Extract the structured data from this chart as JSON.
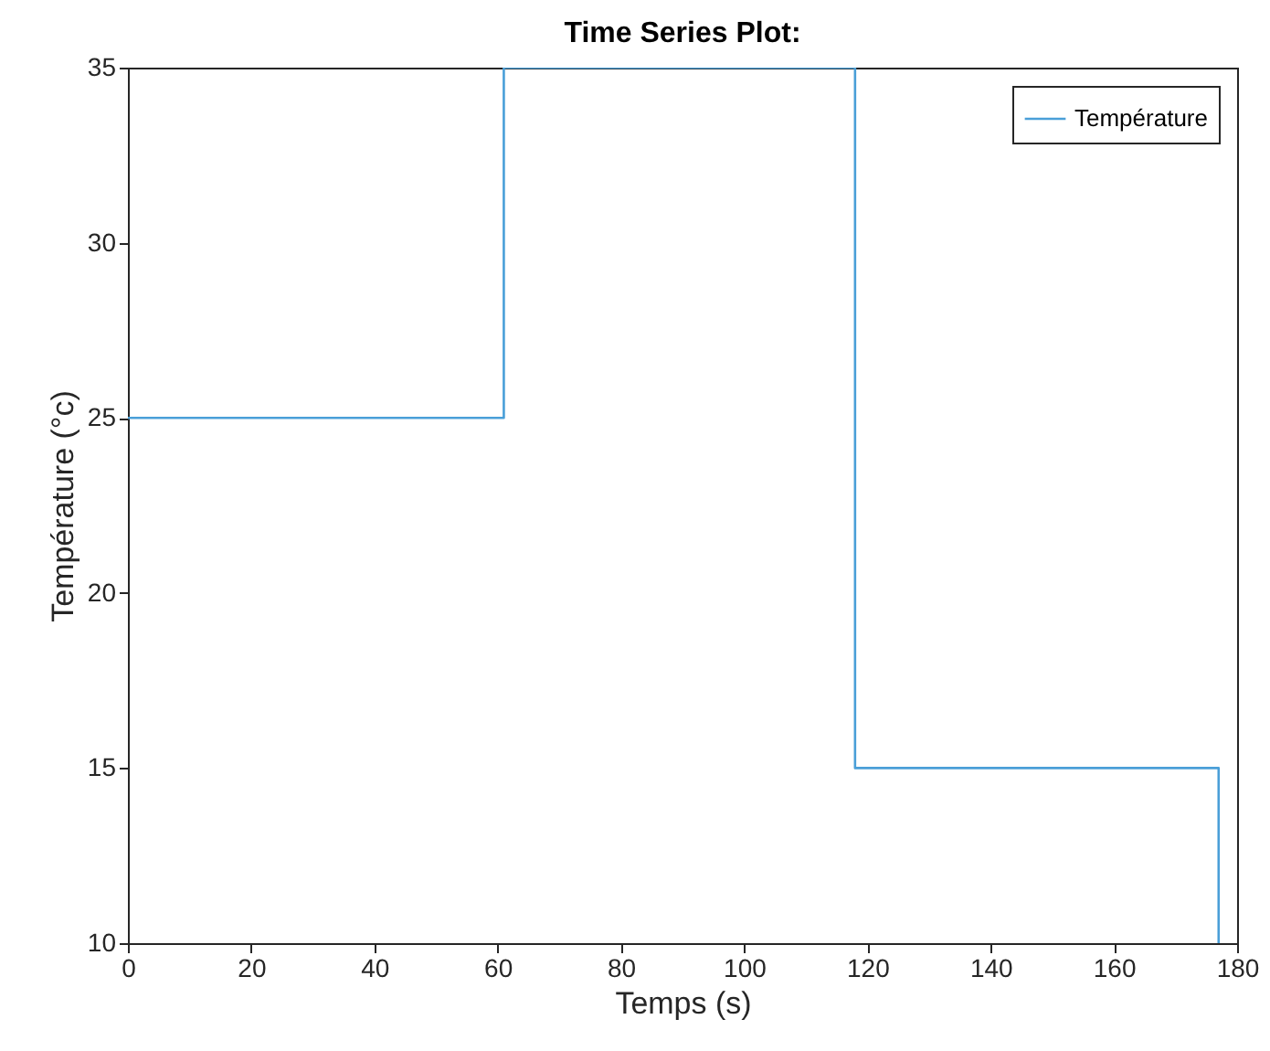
{
  "chart_data": {
    "type": "step",
    "title": "Time Series Plot:",
    "xlabel": "Temps (s)",
    "ylabel": "Température (°c)",
    "x": [
      0,
      61,
      118,
      177
    ],
    "series": [
      {
        "name": "Température",
        "color": "#4a9fd8",
        "values": [
          25,
          35,
          15,
          10
        ]
      }
    ],
    "xlim": [
      0,
      180
    ],
    "xticks": [
      0,
      20,
      40,
      60,
      80,
      100,
      120,
      140,
      160,
      180
    ],
    "ylim": [
      10,
      35
    ],
    "yticks": [
      10,
      15,
      20,
      25,
      30,
      35
    ],
    "grid": false,
    "legend": "top right"
  }
}
